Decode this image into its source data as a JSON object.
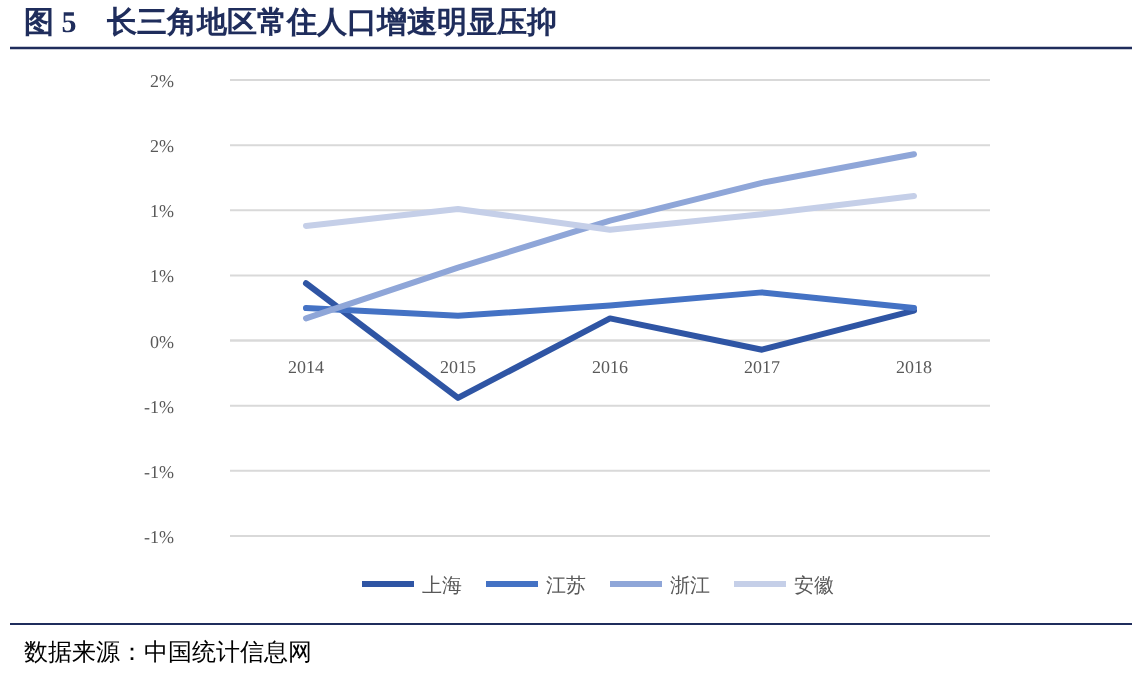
{
  "chart_data": {
    "type": "line",
    "title": "图 5　长三角地区常住人口增速明显压抑",
    "categories": [
      "2014",
      "2015",
      "2016",
      "2017",
      "2018"
    ],
    "series": [
      {
        "name": "上海",
        "color": "#2f55a4",
        "values": [
          0.44,
          -0.44,
          0.17,
          -0.07,
          0.23
        ]
      },
      {
        "name": "江苏",
        "color": "#4472c4",
        "values": [
          0.25,
          0.19,
          0.27,
          0.37,
          0.25
        ]
      },
      {
        "name": "浙江",
        "color": "#8fa6d8",
        "values": [
          0.17,
          0.56,
          0.92,
          1.21,
          1.43
        ]
      },
      {
        "name": "安徽",
        "color": "#c5cfe8",
        "values": [
          0.88,
          1.01,
          0.85,
          0.97,
          1.11
        ]
      }
    ],
    "ylim": [
      -1.5,
      2.0
    ],
    "yticks": [
      {
        "value": 2.0,
        "label": "2%"
      },
      {
        "value": 1.5,
        "label": "2%"
      },
      {
        "value": 1.0,
        "label": "1%"
      },
      {
        "value": 0.5,
        "label": "1%"
      },
      {
        "value": 0,
        "label": "0%"
      },
      {
        "value": -0.5,
        "label": "-1%"
      },
      {
        "value": -1.0,
        "label": "-1%"
      },
      {
        "value": -1.5,
        "label": "-1%"
      }
    ],
    "grid": "y",
    "legend": "bottom",
    "annotations": [
      "数据来源：中国统计信息网"
    ]
  }
}
